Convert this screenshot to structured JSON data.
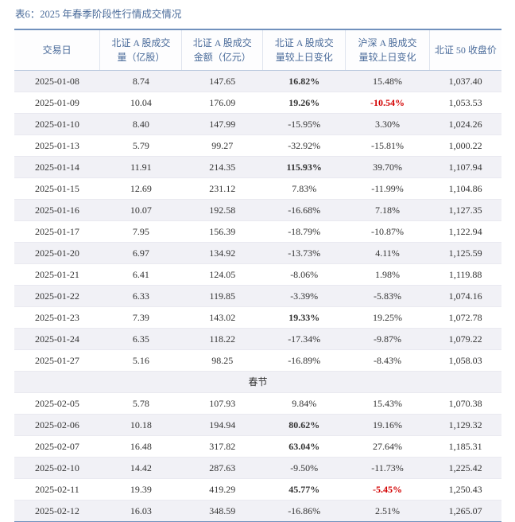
{
  "title": "表6：2025 年春季阶段性行情成交情况",
  "colors": {
    "accent_blue": "#4a6b9a",
    "border_blue": "#7191bd",
    "header_underline": "#bccadf",
    "header_grid": "#dfe4ee",
    "grid_line": "#e9e9f0",
    "stripe": "#f1f1f6",
    "negative_red": "#d30000"
  },
  "table": {
    "headers": [
      {
        "line1": "交易日",
        "line2": ""
      },
      {
        "line1": "北证 A 股成交",
        "line2": "量（亿股）"
      },
      {
        "line1": "北证 A 股成交",
        "line2": "金额（亿元）"
      },
      {
        "line1": "北证 A 股成交",
        "line2": "量较上日变化"
      },
      {
        "line1": "沪深 A 股成交",
        "line2": "量较上日变化"
      },
      {
        "line1": "北证 50 收盘价",
        "line2": ""
      }
    ],
    "rows": [
      {
        "date": "2025-01-08",
        "vol": "8.74",
        "amt": "147.65",
        "bse": "16.82%",
        "bse_bold": true,
        "hs": "15.48%",
        "close": "1,037.40"
      },
      {
        "date": "2025-01-09",
        "vol": "10.04",
        "amt": "176.09",
        "bse": "19.26%",
        "bse_bold": true,
        "hs": "-10.54%",
        "hs_red": true,
        "close": "1,053.53"
      },
      {
        "date": "2025-01-10",
        "vol": "8.40",
        "amt": "147.99",
        "bse": "-15.95%",
        "hs": "3.30%",
        "close": "1,024.26"
      },
      {
        "date": "2025-01-13",
        "vol": "5.79",
        "amt": "99.27",
        "bse": "-32.92%",
        "hs": "-15.81%",
        "close": "1,000.22"
      },
      {
        "date": "2025-01-14",
        "vol": "11.91",
        "amt": "214.35",
        "bse": "115.93%",
        "bse_bold": true,
        "hs": "39.70%",
        "close": "1,107.94"
      },
      {
        "date": "2025-01-15",
        "vol": "12.69",
        "amt": "231.12",
        "bse": "7.83%",
        "hs": "-11.99%",
        "close": "1,104.86"
      },
      {
        "date": "2025-01-16",
        "vol": "10.07",
        "amt": "192.58",
        "bse": "-16.68%",
        "hs": "7.18%",
        "close": "1,127.35"
      },
      {
        "date": "2025-01-17",
        "vol": "7.95",
        "amt": "156.39",
        "bse": "-18.79%",
        "hs": "-10.87%",
        "close": "1,122.94"
      },
      {
        "date": "2025-01-20",
        "vol": "6.97",
        "amt": "134.92",
        "bse": "-13.73%",
        "hs": "4.11%",
        "close": "1,125.59"
      },
      {
        "date": "2025-01-21",
        "vol": "6.41",
        "amt": "124.05",
        "bse": "-8.06%",
        "hs": "1.98%",
        "close": "1,119.88"
      },
      {
        "date": "2025-01-22",
        "vol": "6.33",
        "amt": "119.85",
        "bse": "-3.39%",
        "hs": "-5.83%",
        "close": "1,074.16"
      },
      {
        "date": "2025-01-23",
        "vol": "7.39",
        "amt": "143.02",
        "bse": "19.33%",
        "bse_bold": true,
        "hs": "19.25%",
        "close": "1,072.78"
      },
      {
        "date": "2025-01-24",
        "vol": "6.35",
        "amt": "118.22",
        "bse": "-17.34%",
        "hs": "-9.87%",
        "close": "1,079.22"
      },
      {
        "date": "2025-01-27",
        "vol": "5.16",
        "amt": "98.25",
        "bse": "-16.89%",
        "hs": "-8.43%",
        "close": "1,058.03"
      },
      {
        "separator": "春节"
      },
      {
        "date": "2025-02-05",
        "vol": "5.78",
        "amt": "107.93",
        "bse": "9.84%",
        "hs": "15.43%",
        "close": "1,070.38"
      },
      {
        "date": "2025-02-06",
        "vol": "10.18",
        "amt": "194.94",
        "bse": "80.62%",
        "bse_bold": true,
        "hs": "19.16%",
        "close": "1,129.32"
      },
      {
        "date": "2025-02-07",
        "vol": "16.48",
        "amt": "317.82",
        "bse": "63.04%",
        "bse_bold": true,
        "hs": "27.64%",
        "close": "1,185.31"
      },
      {
        "date": "2025-02-10",
        "vol": "14.42",
        "amt": "287.63",
        "bse": "-9.50%",
        "hs": "-11.73%",
        "close": "1,225.42"
      },
      {
        "date": "2025-02-11",
        "vol": "19.39",
        "amt": "419.29",
        "bse": "45.77%",
        "bse_bold": true,
        "hs": "-5.45%",
        "hs_red": true,
        "close": "1,250.43"
      },
      {
        "date": "2025-02-12",
        "vol": "16.03",
        "amt": "348.59",
        "bse": "-16.86%",
        "hs": "2.51%",
        "close": "1,265.07"
      }
    ]
  }
}
